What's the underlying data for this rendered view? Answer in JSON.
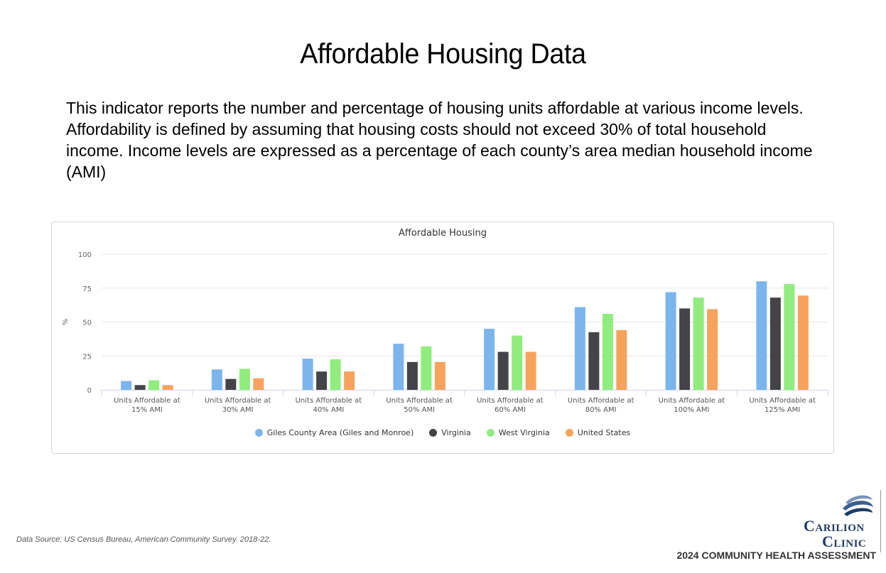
{
  "slide": {
    "title": "Affordable Housing Data",
    "intro": "This indicator reports the number and percentage of housing units affordable at various income levels. Affordability is defined by assuming that housing costs should not exceed 30% of total household income. Income levels are expressed as a percentage of each county’s area median household income (AMI)",
    "source": "Data Source: US Census Bureau, American Community Survey. 2018-22.",
    "footer": "2024 COMMUNITY HEALTH ASSESSMENT",
    "brand": {
      "line1": "Carilion",
      "line2": "Clinic",
      "color": "#1f3d66"
    }
  },
  "chart_data": {
    "type": "bar",
    "title": "Affordable Housing",
    "xlabel": "",
    "ylabel": "%",
    "ylim": [
      0,
      100
    ],
    "yticks": [
      0,
      25,
      50,
      75,
      100
    ],
    "grid": true,
    "legend_position": "bottom-center",
    "categories": [
      [
        "Units Affordable at",
        "15% AMI"
      ],
      [
        "Units Affordable at",
        "30% AMI"
      ],
      [
        "Units Affordable at",
        "40% AMI"
      ],
      [
        "Units Affordable at",
        "50% AMI"
      ],
      [
        "Units Affordable at",
        "60% AMI"
      ],
      [
        "Units Affordable at",
        "80% AMI"
      ],
      [
        "Units Affordable at",
        "100% AMI"
      ],
      [
        "Units Affordable at",
        "125% AMI"
      ]
    ],
    "series": [
      {
        "name": "Giles County Area (Giles and Monroe)",
        "color": "#7cb5ec",
        "values": [
          6.5,
          15,
          23,
          34,
          45,
          61,
          72,
          80
        ]
      },
      {
        "name": "Virginia",
        "color": "#434348",
        "values": [
          3.5,
          8,
          13.5,
          20.5,
          28,
          42.5,
          60,
          68
        ]
      },
      {
        "name": "West Virginia",
        "color": "#90ed7d",
        "values": [
          7,
          15.5,
          22.5,
          32,
          40,
          56,
          68,
          78
        ]
      },
      {
        "name": "United States",
        "color": "#f7a35c",
        "values": [
          3.5,
          8.5,
          13.5,
          20.5,
          28,
          44,
          59.5,
          69.5
        ]
      }
    ]
  }
}
